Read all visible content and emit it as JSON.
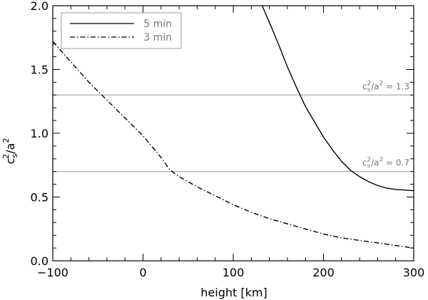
{
  "chart_data": {
    "type": "line",
    "xlabel": "height [km]",
    "ylabel_base": "c",
    "ylabel_sub": "s",
    "ylabel_sup1": "2",
    "ylabel_mid": "/a",
    "ylabel_sup2": "2",
    "xlim": [
      -100,
      300
    ],
    "ylim": [
      0.0,
      2.0
    ],
    "x_ticks": [
      -100,
      0,
      100,
      200,
      300
    ],
    "x_tick_labels": [
      "−100",
      "0",
      "100",
      "200",
      "300"
    ],
    "y_ticks": [
      0.0,
      0.5,
      1.0,
      1.5,
      2.0
    ],
    "y_tick_labels": [
      "0.0",
      "0.5",
      "1.0",
      "1.5",
      "2.0"
    ],
    "legend_position": "top-left",
    "series": [
      {
        "name": "5 min",
        "style": "solid",
        "x": [
          132,
          140,
          150,
          160,
          170,
          180,
          190,
          200,
          210,
          220,
          230,
          240,
          250,
          260,
          270,
          280,
          290,
          300
        ],
        "y": [
          2.0,
          1.87,
          1.7,
          1.52,
          1.36,
          1.21,
          1.09,
          0.97,
          0.87,
          0.78,
          0.71,
          0.66,
          0.62,
          0.59,
          0.57,
          0.56,
          0.555,
          0.55
        ]
      },
      {
        "name": "3 min",
        "style": "dashdot",
        "x": [
          -100,
          -80,
          -60,
          -40,
          -20,
          0,
          20,
          30,
          40,
          60,
          80,
          100,
          120,
          140,
          160,
          180,
          200,
          220,
          240,
          260,
          280,
          300
        ],
        "y": [
          1.72,
          1.56,
          1.4,
          1.26,
          1.12,
          0.98,
          0.81,
          0.71,
          0.66,
          0.58,
          0.51,
          0.44,
          0.38,
          0.33,
          0.29,
          0.25,
          0.21,
          0.18,
          0.16,
          0.14,
          0.12,
          0.1
        ]
      }
    ],
    "hlines": [
      {
        "y": 1.3,
        "label_value": " = 1.3"
      },
      {
        "y": 0.7,
        "label_value": " = 0.7"
      }
    ],
    "colors": {
      "axes": "#000000",
      "reference": "#999999"
    }
  }
}
